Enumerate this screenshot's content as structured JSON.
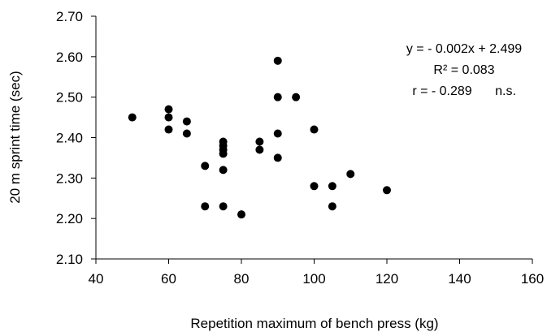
{
  "chart_data": {
    "type": "scatter",
    "xlabel": "Repetition maximum of bench press (kg)",
    "ylabel": "20 m sprint time (sec)",
    "xlim": [
      40,
      160
    ],
    "ylim": [
      2.1,
      2.7
    ],
    "x_ticks": [
      "40",
      "60",
      "80",
      "100",
      "120",
      "140",
      "160"
    ],
    "y_ticks": [
      "2.10",
      "2.20",
      "2.30",
      "2.40",
      "2.50",
      "2.60",
      "2.70"
    ],
    "grid": false,
    "marker_color": "#000000",
    "points": [
      {
        "x": 50,
        "y": 2.45
      },
      {
        "x": 60,
        "y": 2.47
      },
      {
        "x": 60,
        "y": 2.45
      },
      {
        "x": 60,
        "y": 2.42
      },
      {
        "x": 65,
        "y": 2.44
      },
      {
        "x": 65,
        "y": 2.41
      },
      {
        "x": 70,
        "y": 2.33
      },
      {
        "x": 70,
        "y": 2.23
      },
      {
        "x": 75,
        "y": 2.39
      },
      {
        "x": 75,
        "y": 2.38
      },
      {
        "x": 75,
        "y": 2.37
      },
      {
        "x": 75,
        "y": 2.36
      },
      {
        "x": 75,
        "y": 2.32
      },
      {
        "x": 75,
        "y": 2.23
      },
      {
        "x": 80,
        "y": 2.21
      },
      {
        "x": 85,
        "y": 2.39
      },
      {
        "x": 85,
        "y": 2.37
      },
      {
        "x": 90,
        "y": 2.59
      },
      {
        "x": 90,
        "y": 2.5
      },
      {
        "x": 90,
        "y": 2.41
      },
      {
        "x": 90,
        "y": 2.35
      },
      {
        "x": 95,
        "y": 2.5
      },
      {
        "x": 100,
        "y": 2.42
      },
      {
        "x": 100,
        "y": 2.28
      },
      {
        "x": 105,
        "y": 2.28
      },
      {
        "x": 105,
        "y": 2.23
      },
      {
        "x": 110,
        "y": 2.31
      },
      {
        "x": 120,
        "y": 2.27
      }
    ],
    "annotations": {
      "equation": "y = - 0.002x + 2.499",
      "r_squared": "R² = 0.083",
      "r_value": "r = - 0.289",
      "significance": "n.s."
    }
  }
}
